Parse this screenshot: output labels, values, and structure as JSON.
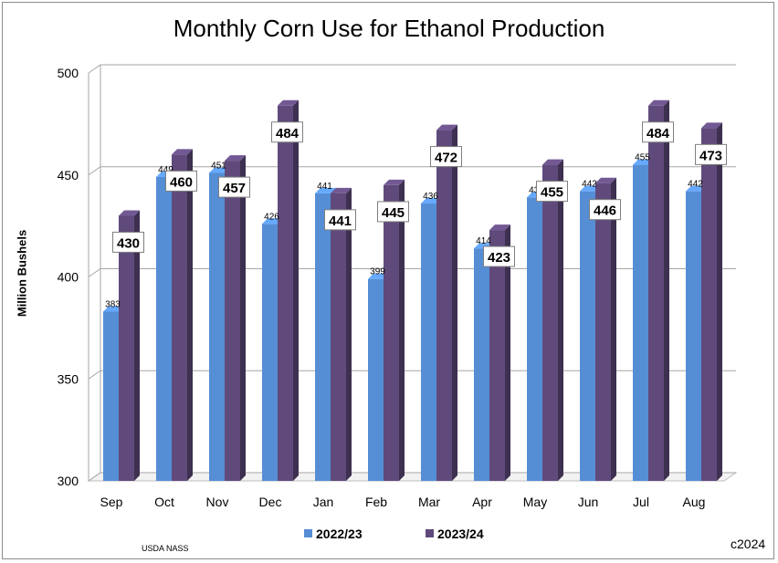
{
  "chart_data": {
    "type": "bar",
    "title": "Monthly Corn Use for Ethanol Production",
    "ylabel": "Million Bushels",
    "xlabel": "",
    "ylim": [
      300,
      500
    ],
    "yticks": [
      300,
      350,
      400,
      450,
      500
    ],
    "grid": true,
    "legend_position": "bottom",
    "categories": [
      "Sep",
      "Oct",
      "Nov",
      "Dec",
      "Jan",
      "Feb",
      "Mar",
      "Apr",
      "May",
      "Jun",
      "Jul",
      "Aug"
    ],
    "series": [
      {
        "name": "2022/23",
        "color": "#558ed5",
        "values": [
          383,
          449,
          451,
          426,
          441,
          399,
          436,
          414,
          439,
          442,
          455,
          442
        ]
      },
      {
        "name": "2023/24",
        "color": "#604a7b",
        "values": [
          430,
          460,
          457,
          484,
          441,
          445,
          472,
          423,
          455,
          446,
          484,
          473
        ]
      }
    ]
  },
  "footer": {
    "source": "USDA NASS",
    "copyright": "c2024"
  }
}
